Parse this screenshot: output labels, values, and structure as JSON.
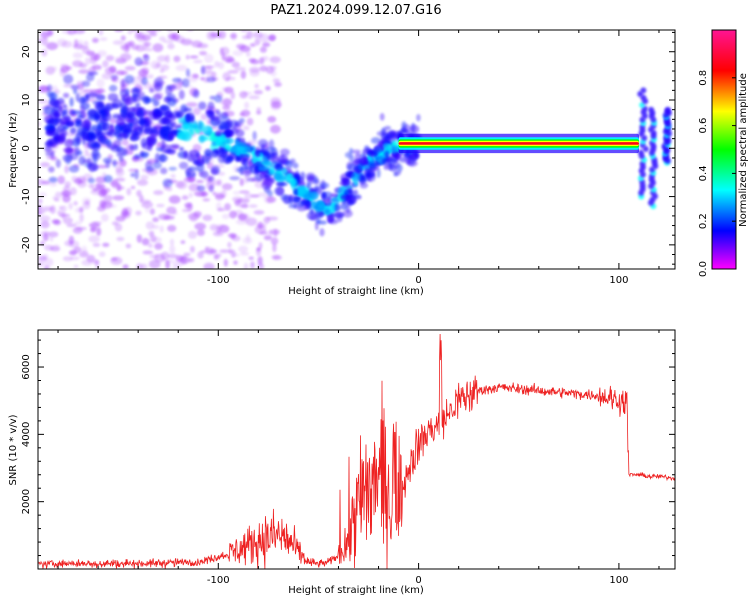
{
  "title": "PAZ1.2024.099.12.07.G16",
  "chart_data": [
    {
      "type": "heatmap",
      "xlabel": "Height of straight line (km)",
      "ylabel": "Frequency (Hz)",
      "xlim": [
        -190,
        128
      ],
      "ylim": [
        -25,
        24.5
      ],
      "xticks": [
        -100,
        0,
        100
      ],
      "yticks": [
        20,
        10,
        0,
        -10,
        -20
      ],
      "colorbar": {
        "label": "Normalized spectral amplitude",
        "range": [
          0,
          1
        ],
        "ticks": [
          0.0,
          0.2,
          0.4,
          0.6,
          0.8
        ],
        "colormap": "hsv",
        "colors": [
          "#ff00ff",
          "#0000ff",
          "#00ffff",
          "#00ff00",
          "#ffff00",
          "#ff0000",
          "#ff1493"
        ]
      },
      "ridge": {
        "description_points_x": [
          -150,
          -120,
          -100,
          -85,
          -70,
          -55,
          -45,
          -35,
          -25,
          -15,
          0,
          20,
          60,
          100,
          110,
          115,
          120,
          125
        ],
        "description_points_y": [
          5,
          4,
          2,
          -1,
          -5,
          -10,
          -13,
          -8,
          -3,
          0,
          1,
          1,
          1,
          1,
          2,
          8,
          -5,
          7
        ]
      },
      "strong_band": {
        "x": [
          -10,
          110
        ],
        "y": 1
      },
      "grid": false
    },
    {
      "type": "line",
      "xlabel": "Height of straight line (km)",
      "ylabel": "SNR (10 * v/v)",
      "xlim": [
        -190,
        128
      ],
      "ylim": [
        0,
        7100
      ],
      "xticks": [
        -100,
        0,
        100
      ],
      "yticks": [
        2000,
        4000,
        6000
      ],
      "color": "#ee2222",
      "series": [
        {
          "x": [
            -190,
            -140,
            -110,
            -95,
            -85,
            -78,
            -70,
            -65,
            -60,
            -55,
            -50,
            -45,
            -40,
            -35,
            -30,
            -25,
            -20,
            -15,
            -10,
            -5,
            0,
            5,
            10,
            15,
            20,
            30,
            40,
            50,
            60,
            70,
            80,
            90,
            95,
            100,
            104,
            105,
            110,
            115,
            120,
            128
          ],
          "y": [
            150,
            170,
            200,
            450,
            700,
            900,
            1000,
            850,
            500,
            200,
            150,
            200,
            400,
            900,
            1700,
            2300,
            2600,
            2200,
            2000,
            3000,
            3700,
            4100,
            4300,
            4600,
            5000,
            5300,
            5400,
            5350,
            5300,
            5250,
            5200,
            5150,
            5100,
            5000,
            4950,
            2800,
            2800,
            2750,
            2750,
            2700
          ]
        }
      ],
      "grid": false
    }
  ]
}
